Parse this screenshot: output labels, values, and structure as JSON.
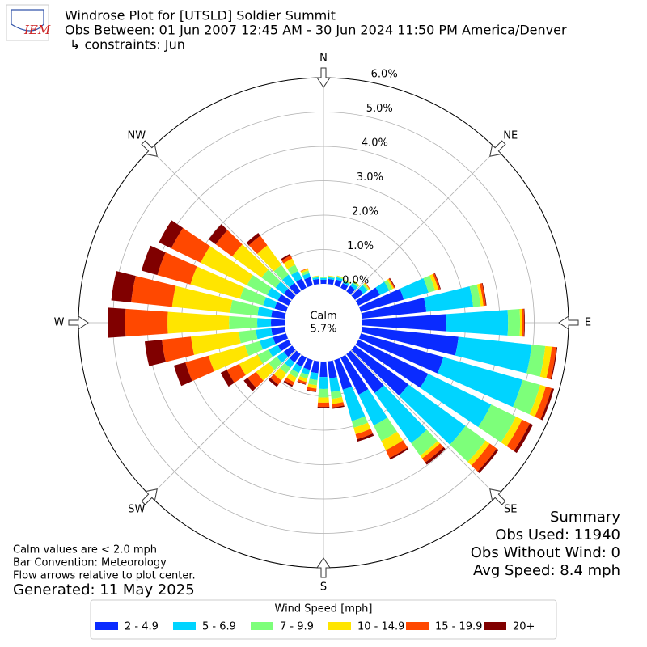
{
  "chart_data": {
    "type": "windrose",
    "logo_text": "IEM",
    "title": "Windrose Plot for [UTSLD] Soldier Summit",
    "subtitle": "Obs Between: 01 Jun 2007 12:45 AM - 30 Jun 2024 11:50 PM America/Denver",
    "constraints": "↳ constraints: Jun",
    "direction_labels": [
      "N",
      "NE",
      "E",
      "SE",
      "S",
      "SW",
      "W",
      "NW"
    ],
    "calm_label": "Calm",
    "calm_value": 5.7,
    "calm_value_label": "5.7%",
    "x": [
      0,
      10,
      20,
      30,
      40,
      50,
      60,
      70,
      80,
      90,
      100,
      110,
      120,
      130,
      140,
      150,
      160,
      170,
      180,
      190,
      200,
      210,
      220,
      230,
      240,
      250,
      260,
      270,
      280,
      290,
      300,
      310,
      320,
      330,
      340,
      350
    ],
    "ylim": [
      0,
      6
    ],
    "yticks": [
      {
        "value": 0,
        "label": "0.0%"
      },
      {
        "value": 1,
        "label": "1.0%"
      },
      {
        "value": 2,
        "label": "2.0%"
      },
      {
        "value": 3,
        "label": "3.0%"
      },
      {
        "value": 4,
        "label": "4.0%"
      },
      {
        "value": 5,
        "label": "5.0%"
      },
      {
        "value": 6,
        "label": "6.0%"
      }
    ],
    "grid": true,
    "series": [
      {
        "name": "2 - 4.9",
        "color": "#0a2bff",
        "values": [
          0.12,
          0.15,
          0.18,
          0.15,
          0.2,
          0.3,
          0.7,
          1.3,
          1.88,
          2.45,
          2.82,
          2.5,
          2.26,
          1.93,
          1.4,
          1.2,
          0.9,
          0.5,
          0.45,
          0.35,
          0.3,
          0.3,
          0.3,
          0.3,
          0.35,
          0.4,
          0.4,
          0.4,
          0.4,
          0.35,
          0.35,
          0.3,
          0.3,
          0.3,
          0.25,
          0.15
        ]
      },
      {
        "name": "5 - 6.9",
        "color": "#00d4ff",
        "values": [
          0.05,
          0.05,
          0.07,
          0.07,
          0.1,
          0.15,
          0.3,
          0.75,
          1.37,
          1.79,
          2.14,
          2.4,
          2.04,
          2.05,
          1.8,
          1.0,
          0.95,
          0.4,
          0.35,
          0.2,
          0.15,
          0.2,
          0.2,
          0.25,
          0.3,
          0.4,
          0.45,
          0.4,
          0.4,
          0.35,
          0.35,
          0.3,
          0.3,
          0.25,
          0.12,
          0.05
        ]
      },
      {
        "name": "7 - 9.9",
        "color": "#7dff7a",
        "values": [
          0.02,
          0.03,
          0.03,
          0.03,
          0.05,
          0.05,
          0.1,
          0.2,
          0.22,
          0.35,
          0.4,
          0.53,
          0.8,
          0.72,
          0.45,
          0.5,
          0.2,
          0.2,
          0.25,
          0.15,
          0.12,
          0.15,
          0.2,
          0.3,
          0.35,
          0.45,
          0.5,
          0.82,
          0.8,
          0.7,
          0.65,
          0.5,
          0.35,
          0.2,
          0.08,
          0.03
        ]
      },
      {
        "name": "10 - 14.9",
        "color": "#ffe500",
        "values": [
          0.01,
          0.02,
          0.02,
          0.02,
          0.03,
          0.03,
          0.05,
          0.1,
          0.08,
          0.07,
          0.19,
          0.17,
          0.2,
          0.15,
          0.1,
          0.3,
          0.2,
          0.15,
          0.15,
          0.1,
          0.1,
          0.15,
          0.25,
          0.45,
          0.6,
          1.1,
          1.4,
          1.79,
          1.7,
          1.5,
          1.5,
          1.05,
          0.7,
          0.2,
          0.05,
          0.02
        ]
      },
      {
        "name": "15 - 19.9",
        "color": "#ff4800",
        "values": [
          0,
          0,
          0,
          0,
          0,
          0.02,
          0.03,
          0.05,
          0.07,
          0.05,
          0.13,
          0.18,
          0.25,
          0.25,
          0.15,
          0.25,
          0.15,
          0.1,
          0.12,
          0.08,
          0.06,
          0.1,
          0.15,
          0.3,
          0.4,
          0.7,
          0.85,
          1.23,
          1.2,
          1.0,
          0.95,
          0.6,
          0.35,
          0.1,
          0.02,
          0
        ]
      },
      {
        "name": "20+",
        "color": "#800000",
        "values": [
          0,
          0,
          0,
          0,
          0,
          0,
          0.02,
          0.02,
          0.02,
          0.02,
          0.03,
          0.07,
          0.1,
          0.07,
          0.08,
          0.05,
          0.07,
          0.04,
          0.04,
          0.02,
          0.02,
          0.05,
          0.08,
          0.14,
          0.2,
          0.35,
          0.5,
          0.51,
          0.58,
          0.48,
          0.4,
          0.25,
          0.1,
          0.05,
          0,
          0
        ]
      }
    ],
    "legend_title": "Wind Speed [mph]",
    "summary": [
      "Summary",
      "Obs Used: 11940",
      "Obs Without Wind: 0",
      "Avg Speed: 8.4 mph"
    ],
    "notes": [
      "Calm values are < 2.0 mph",
      "Bar Convention: Meteorology",
      "Flow arrows relative to plot center."
    ],
    "generated": "Generated: 11 May 2025"
  }
}
